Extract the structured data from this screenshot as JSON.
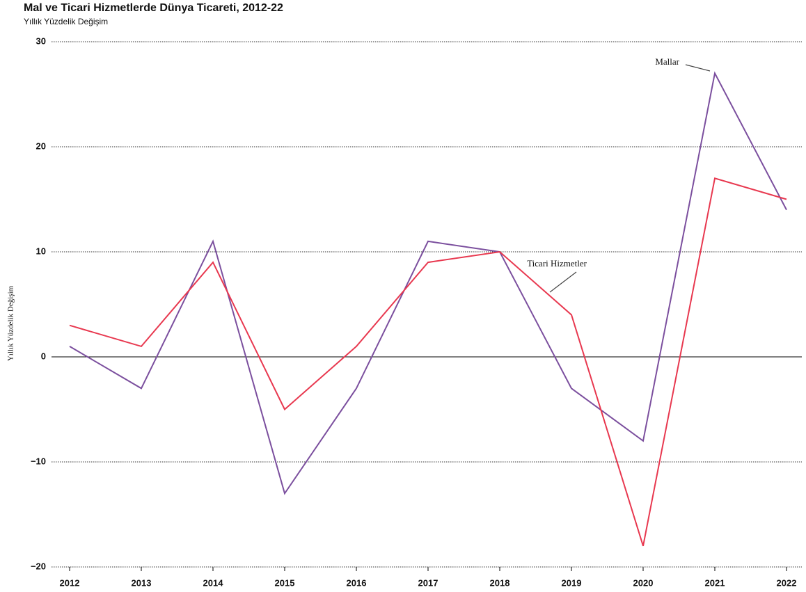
{
  "chart_data": {
    "type": "line",
    "title": "Mal ve Ticari Hizmetlerde Dünya Ticareti, 2012-22",
    "subtitle": "Yıllık Yüzdelik Değişim",
    "y_label": "Yıllık Yüzdelik Değişim",
    "categories": [
      "2012",
      "2013",
      "2014",
      "2015",
      "2016",
      "2017",
      "2018",
      "2019",
      "2020",
      "2021",
      "2022"
    ],
    "series": [
      {
        "name": "Mallar",
        "color": "#7b4f9e",
        "values": [
          1,
          -3,
          11,
          -13,
          -3,
          11,
          10,
          -3,
          -8,
          27,
          14
        ]
      },
      {
        "name": "Ticari Hizmetler",
        "color": "#e8384f",
        "values": [
          3,
          1,
          9,
          -5,
          1,
          9,
          10,
          4,
          -18,
          17,
          15
        ]
      }
    ],
    "ylim": [
      -20,
      30
    ],
    "yticks": [
      {
        "value": -20,
        "label": "−20"
      },
      {
        "value": -10,
        "label": "−10"
      },
      0,
      10,
      20,
      30
    ],
    "grid": true
  }
}
